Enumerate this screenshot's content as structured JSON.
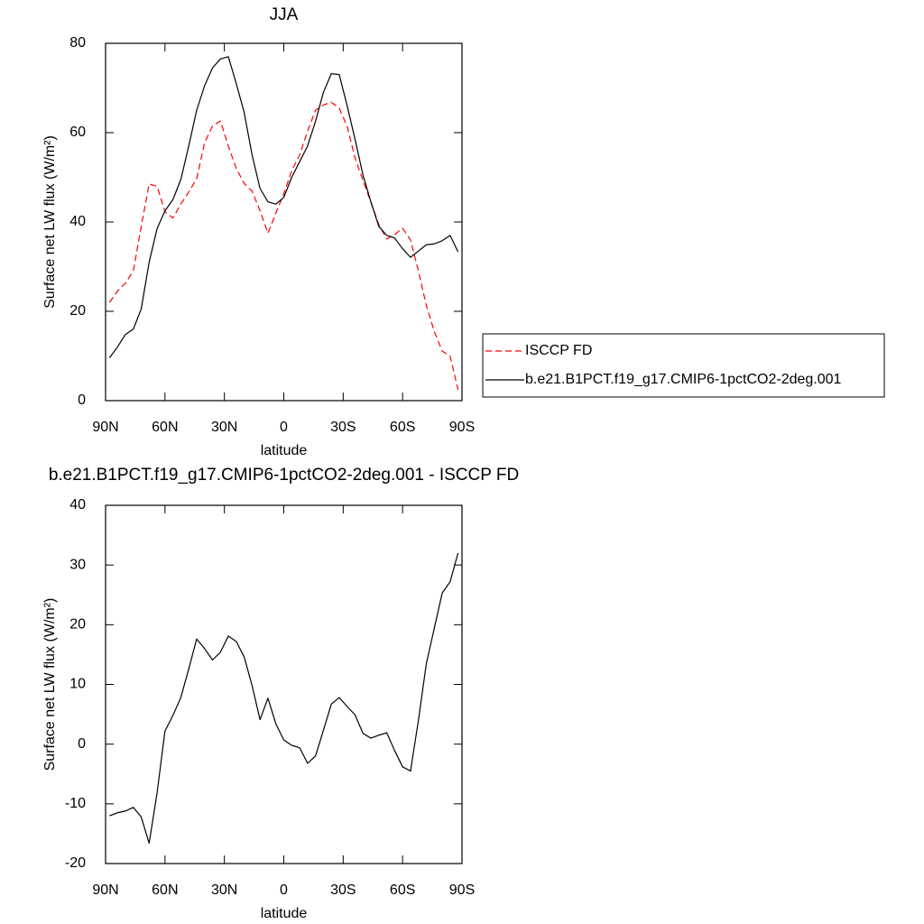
{
  "chart_data": [
    {
      "type": "line",
      "title": "JJA",
      "xlabel": "latitude",
      "ylabel": "Surface net LW flux (W/m²)",
      "x": [
        88,
        84,
        80,
        76,
        72,
        68,
        64,
        60,
        56,
        52,
        48,
        44,
        40,
        36,
        32,
        28,
        24,
        20,
        16,
        12,
        8,
        4,
        0,
        -4,
        -8,
        -12,
        -16,
        -20,
        -24,
        -28,
        -32,
        -36,
        -40,
        -44,
        -48,
        -52,
        -56,
        -60,
        -64,
        -68,
        -72,
        -76,
        -80,
        -84,
        -88
      ],
      "xlim": [
        90,
        -90
      ],
      "xticks": [
        {
          "value": 90,
          "label": "90N"
        },
        {
          "value": 60,
          "label": "60N"
        },
        {
          "value": 30,
          "label": "30N"
        },
        0,
        {
          "value": -30,
          "label": "30S"
        },
        {
          "value": -60,
          "label": "60S"
        },
        {
          "value": -90,
          "label": "90S"
        }
      ],
      "ylim": [
        0,
        80
      ],
      "yticks": [
        0,
        20,
        40,
        60,
        80
      ],
      "legend": "right",
      "series": [
        {
          "name": "ISCCP FD",
          "color": "#ff0000",
          "dash": "dashed",
          "values": [
            22,
            24.5,
            26.3,
            29,
            39,
            48.5,
            48,
            42.3,
            40.9,
            44,
            46.7,
            49.7,
            57.7,
            61.5,
            62.6,
            57,
            52,
            48.6,
            46.9,
            42.5,
            37.5,
            42,
            46.3,
            51.5,
            55,
            60.3,
            65,
            66.2,
            66.8,
            65.5,
            61.4,
            54.3,
            49.3,
            44.4,
            39.4,
            36.2,
            37.2,
            38.6,
            36,
            29,
            21.3,
            15.5,
            11.1,
            10,
            2.4
          ]
        },
        {
          "name": "b.e21.B1PCT.f19_g17.CMIP6-1pctCO2-2deg.001",
          "color": "#000000",
          "dash": "solid",
          "values": [
            9.6,
            12,
            14.8,
            16,
            20.5,
            31,
            38.5,
            42.5,
            45,
            49.5,
            57,
            65,
            70.5,
            74.5,
            76.5,
            77,
            71,
            64.5,
            55,
            47.5,
            44.5,
            44,
            45.5,
            50,
            53.5,
            57,
            62.5,
            69,
            73.2,
            73,
            66,
            58.5,
            50.5,
            44.5,
            39,
            37,
            36.4,
            34,
            32.1,
            33.5,
            34.9,
            35.1,
            35.8,
            37,
            33.3
          ]
        }
      ]
    },
    {
      "type": "line",
      "title": "b.e21.B1PCT.f19_g17.CMIP6-1pctCO2-2deg.001 - ISCCP FD",
      "xlabel": "latitude",
      "ylabel": "Surface net LW flux (W/m²)",
      "x": [
        88,
        84,
        80,
        76,
        72,
        68,
        64,
        60,
        56,
        52,
        48,
        44,
        40,
        36,
        32,
        28,
        24,
        20,
        16,
        12,
        8,
        4,
        0,
        -4,
        -8,
        -12,
        -16,
        -20,
        -24,
        -28,
        -32,
        -36,
        -40,
        -44,
        -48,
        -52,
        -56,
        -60,
        -64,
        -68,
        -72,
        -76,
        -80,
        -84,
        -88
      ],
      "xlim": [
        90,
        -90
      ],
      "xticks": [
        {
          "value": 90,
          "label": "90N"
        },
        {
          "value": 60,
          "label": "60N"
        },
        {
          "value": 30,
          "label": "30N"
        },
        0,
        {
          "value": -30,
          "label": "30S"
        },
        {
          "value": -60,
          "label": "60S"
        },
        {
          "value": -90,
          "label": "90S"
        }
      ],
      "ylim": [
        -20,
        40
      ],
      "yticks": [
        -20,
        -10,
        0,
        10,
        20,
        30,
        40
      ],
      "series": [
        {
          "color": "#000000",
          "dash": "solid",
          "values": [
            -12,
            -11.5,
            -11.2,
            -10.6,
            -12.2,
            -16.6,
            -8.2,
            2.2,
            4.8,
            7.8,
            12.6,
            17.6,
            16,
            14.1,
            15.4,
            18.1,
            17.2,
            14.6,
            9.8,
            4.1,
            7.7,
            3.4,
            0.7,
            -0.2,
            -0.6,
            -3.2,
            -2,
            2.3,
            6.7,
            7.8,
            6.3,
            4.9,
            1.8,
            1,
            1.5,
            1.9,
            -1.1,
            -3.8,
            -4.5,
            4,
            13.5,
            19.4,
            25.3,
            27.2,
            32
          ]
        }
      ]
    }
  ]
}
